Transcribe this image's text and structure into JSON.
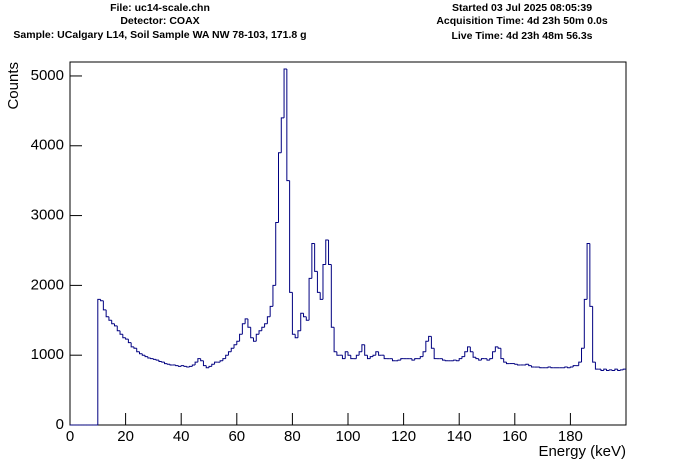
{
  "chart_data": {
    "type": "histogram",
    "header_left": [
      "File: uc14-scale.chn",
      "Detector: COAX",
      "Sample: UCalgary L14, Soil Sample WA NW 78-103, 171.8 g"
    ],
    "header_right": [
      "Started 03 Jul 2025 08:05:39",
      "Acquisition Time: 4d 23h 50m 0.0s",
      "Live Time: 4d 23h 48m 56.3s"
    ],
    "x_label": "Energy (keV)",
    "y_label": "Counts",
    "color": "#000080",
    "xlim": [
      0,
      200
    ],
    "ylim": [
      0,
      5200
    ],
    "xticks": [
      0,
      20,
      40,
      60,
      80,
      100,
      120,
      140,
      160,
      180
    ],
    "yticks": [
      0,
      1000,
      2000,
      3000,
      4000,
      5000
    ],
    "bins": [
      0,
      1,
      2,
      3,
      4,
      5,
      6,
      7,
      8,
      9,
      10,
      11,
      12,
      13,
      14,
      15,
      16,
      17,
      18,
      19,
      20,
      21,
      22,
      23,
      24,
      25,
      26,
      27,
      28,
      29,
      30,
      31,
      32,
      33,
      34,
      35,
      36,
      37,
      38,
      39,
      40,
      41,
      42,
      43,
      44,
      45,
      46,
      47,
      48,
      49,
      50,
      51,
      52,
      53,
      54,
      55,
      56,
      57,
      58,
      59,
      60,
      61,
      62,
      63,
      64,
      65,
      66,
      67,
      68,
      69,
      70,
      71,
      72,
      73,
      74,
      75,
      76,
      77,
      78,
      79,
      80,
      81,
      82,
      83,
      84,
      85,
      86,
      87,
      88,
      89,
      90,
      91,
      92,
      93,
      94,
      95,
      96,
      97,
      98,
      99,
      100,
      101,
      102,
      103,
      104,
      105,
      106,
      107,
      108,
      109,
      110,
      111,
      112,
      113,
      114,
      115,
      116,
      117,
      118,
      119,
      120,
      121,
      122,
      123,
      124,
      125,
      126,
      127,
      128,
      129,
      130,
      131,
      132,
      133,
      134,
      135,
      136,
      137,
      138,
      139,
      140,
      141,
      142,
      143,
      144,
      145,
      146,
      147,
      148,
      149,
      150,
      151,
      152,
      153,
      154,
      155,
      156,
      157,
      158,
      159,
      160,
      161,
      162,
      163,
      164,
      165,
      166,
      167,
      168,
      169,
      170,
      171,
      172,
      173,
      174,
      175,
      176,
      177,
      178,
      179,
      180,
      181,
      182,
      183,
      184,
      185,
      186,
      187,
      188,
      189,
      190,
      191,
      192,
      193,
      194,
      195,
      196,
      197,
      198,
      199,
      200
    ],
    "values": [
      0,
      0,
      0,
      0,
      0,
      0,
      0,
      0,
      0,
      0,
      1800,
      1780,
      1650,
      1550,
      1500,
      1450,
      1420,
      1350,
      1300,
      1250,
      1230,
      1180,
      1120,
      1100,
      1050,
      1020,
      1000,
      980,
      960,
      950,
      940,
      930,
      910,
      900,
      880,
      870,
      860,
      860,
      850,
      840,
      850,
      840,
      830,
      840,
      860,
      900,
      950,
      920,
      850,
      820,
      840,
      870,
      900,
      900,
      920,
      950,
      1000,
      1050,
      1100,
      1150,
      1200,
      1300,
      1450,
      1520,
      1400,
      1250,
      1200,
      1300,
      1350,
      1400,
      1450,
      1550,
      1700,
      2000,
      2900,
      3900,
      4400,
      5100,
      3500,
      1900,
      1300,
      1250,
      1350,
      1600,
      1550,
      1500,
      2100,
      2600,
      2200,
      1900,
      1800,
      2300,
      2650,
      2300,
      1400,
      1050,
      1000,
      1000,
      950,
      1050,
      1000,
      950,
      950,
      1000,
      1050,
      1150,
      1000,
      950,
      980,
      1000,
      1050,
      1000,
      1000,
      950,
      950,
      950,
      920,
      920,
      930,
      950,
      950,
      950,
      950,
      930,
      950,
      950,
      980,
      1050,
      1200,
      1270,
      1100,
      950,
      950,
      950,
      930,
      920,
      920,
      920,
      930,
      920,
      950,
      980,
      1050,
      1120,
      1050,
      970,
      950,
      930,
      950,
      950,
      930,
      950,
      1050,
      1120,
      1100,
      950,
      900,
      880,
      880,
      880,
      870,
      860,
      860,
      860,
      870,
      850,
      830,
      830,
      830,
      820,
      820,
      820,
      830,
      820,
      820,
      820,
      820,
      820,
      830,
      820,
      830,
      850,
      850,
      900,
      1100,
      1800,
      2600,
      1700,
      900,
      800,
      800,
      780,
      800,
      780,
      790,
      780,
      800,
      780,
      790,
      800
    ]
  }
}
